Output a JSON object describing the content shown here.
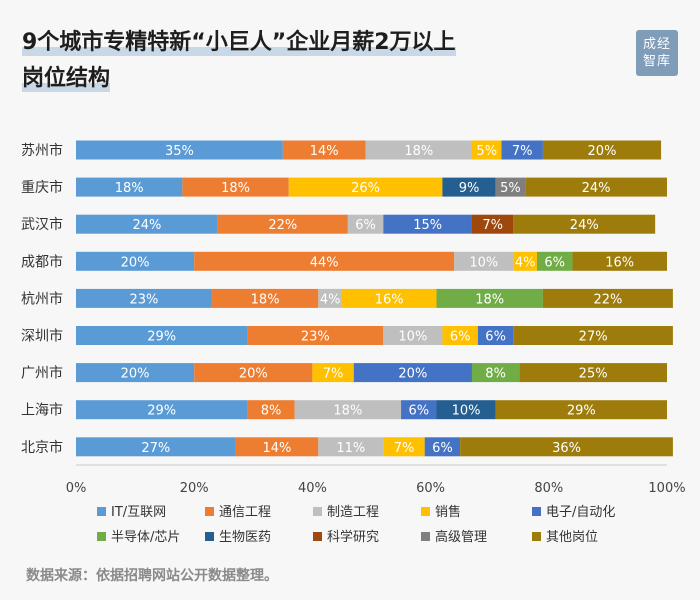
{
  "title": {
    "line1": "9个城市专精特新“小巨人”企业月薪2万以上",
    "line2": "岗位结构"
  },
  "logo": {
    "line1": "成经",
    "line2": "智库"
  },
  "source": "数据来源：依据招聘网站公开数据整理。",
  "colors": {
    "IT/互联网": "#5b9bd5",
    "通信工程": "#ed7d31",
    "制造工程": "#bfbfbf",
    "销售": "#ffc000",
    "电子/自动化": "#4472c4",
    "半导体/芯片": "#70ad47",
    "生物医药": "#255e91",
    "科学研究": "#9e480e",
    "高级管理": "#7f7f7f",
    "其他岗位": "#9e7c0c"
  },
  "chart_data": {
    "type": "bar",
    "orientation": "horizontal",
    "stacked": true,
    "normalized": true,
    "categories": [
      "苏州市",
      "重庆市",
      "武汉市",
      "成都市",
      "杭州市",
      "深圳市",
      "广州市",
      "上海市",
      "北京市"
    ],
    "series": [
      {
        "name": "IT/互联网",
        "values": [
          35,
          18,
          24,
          20,
          23,
          29,
          20,
          29,
          27
        ]
      },
      {
        "name": "通信工程",
        "values": [
          14,
          18,
          22,
          44,
          18,
          23,
          20,
          8,
          14
        ]
      },
      {
        "name": "制造工程",
        "values": [
          18,
          0,
          6,
          10,
          4,
          10,
          0,
          18,
          11
        ]
      },
      {
        "name": "销售",
        "values": [
          5,
          26,
          0,
          4,
          16,
          6,
          7,
          0,
          7
        ]
      },
      {
        "name": "电子/自动化",
        "values": [
          7,
          0,
          15,
          0,
          0,
          6,
          20,
          6,
          6
        ]
      },
      {
        "name": "半导体/芯片",
        "values": [
          0,
          0,
          0,
          6,
          18,
          0,
          8,
          0,
          0
        ]
      },
      {
        "name": "生物医药",
        "values": [
          0,
          9,
          0,
          0,
          0,
          0,
          0,
          10,
          0
        ]
      },
      {
        "name": "科学研究",
        "values": [
          0,
          0,
          7,
          0,
          0,
          0,
          0,
          0,
          0
        ]
      },
      {
        "name": "高级管理",
        "values": [
          0,
          5,
          0,
          0,
          0,
          0,
          0,
          0,
          0
        ]
      },
      {
        "name": "其他岗位",
        "values": [
          20,
          24,
          24,
          16,
          22,
          27,
          25,
          29,
          36
        ]
      }
    ],
    "xlim": [
      0,
      100
    ],
    "xticks": [
      "0%",
      "20%",
      "40%",
      "60%",
      "80%",
      "100%"
    ],
    "legend_position": "bottom"
  }
}
